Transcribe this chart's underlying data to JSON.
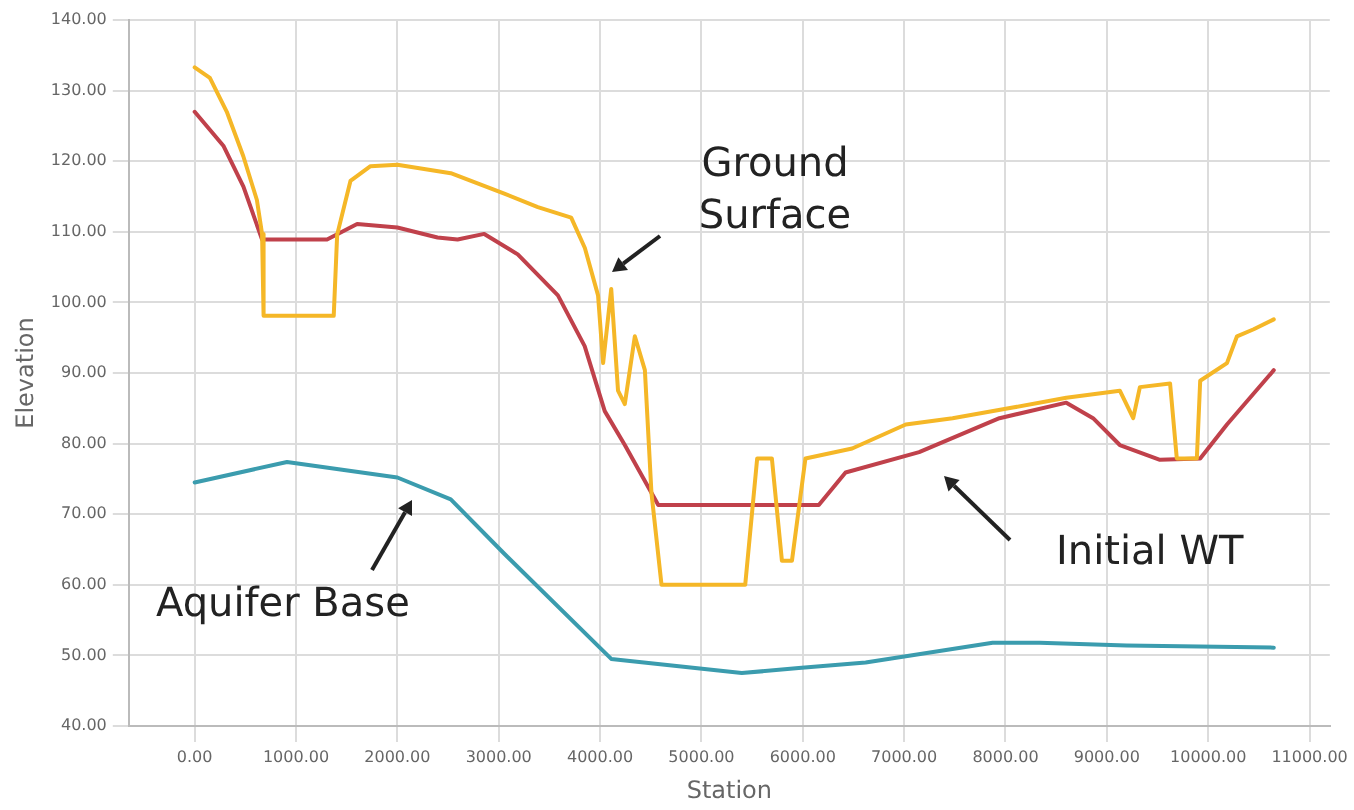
{
  "chart_data": {
    "type": "line",
    "xlabel": "Station",
    "ylabel": "Elevation",
    "xlim": [
      -650,
      11200
    ],
    "ylim": [
      40,
      140
    ],
    "xticks": [
      {
        "value": 0,
        "label": "0.00"
      },
      {
        "value": 1000,
        "label": "1000.00"
      },
      {
        "value": 2000,
        "label": "2000.00"
      },
      {
        "value": 3000,
        "label": "3000.00"
      },
      {
        "value": 4000,
        "label": "4000.00"
      },
      {
        "value": 5000,
        "label": "5000.00"
      },
      {
        "value": 6000,
        "label": "6000.00"
      },
      {
        "value": 7000,
        "label": "7000.00"
      },
      {
        "value": 8000,
        "label": "8000.00"
      },
      {
        "value": 9000,
        "label": "9000.00"
      },
      {
        "value": 10000,
        "label": "10000.00"
      },
      {
        "value": 11000,
        "label": "11000.00"
      }
    ],
    "yticks": [
      {
        "value": 40,
        "label": "40.00"
      },
      {
        "value": 50,
        "label": "50.00"
      },
      {
        "value": 60,
        "label": "60.00"
      },
      {
        "value": 70,
        "label": "70.00"
      },
      {
        "value": 80,
        "label": "80.00"
      },
      {
        "value": 90,
        "label": "90.00"
      },
      {
        "value": 100,
        "label": "100.00"
      },
      {
        "value": 110,
        "label": "110.00"
      },
      {
        "value": 120,
        "label": "120.00"
      },
      {
        "value": 130,
        "label": "130.00"
      },
      {
        "value": 140,
        "label": "140.00"
      }
    ],
    "grid": true,
    "legend": false,
    "marker": "none",
    "line_style": "solid",
    "series": [
      {
        "name": "Ground Surface",
        "color": "#f5b727",
        "x": [
          0,
          150,
          317,
          480,
          614,
          665,
          680,
          1372,
          1406,
          1537,
          1735,
          2000,
          2527,
          3055,
          3386,
          3715,
          3850,
          3980,
          4030,
          4110,
          4177,
          4244,
          4343,
          4442,
          4507,
          4606,
          5432,
          5550,
          5695,
          5794,
          5893,
          6026,
          6487,
          7016,
          7478,
          8072,
          8600,
          9128,
          9260,
          9326,
          9624,
          9690,
          9888,
          9921,
          10185,
          10284,
          10449,
          10647
        ],
        "values": [
          133.3,
          131.8,
          127,
          120.7,
          114.5,
          109.7,
          98.1,
          98.1,
          109.6,
          117.2,
          119.3,
          119.5,
          118.3,
          115.4,
          113.5,
          112,
          107.7,
          101,
          91.4,
          101.9,
          87.5,
          85.6,
          95.2,
          90.4,
          73,
          60,
          60,
          77.9,
          77.9,
          63.4,
          63.4,
          77.9,
          79.3,
          82.7,
          83.6,
          85.1,
          86.5,
          87.5,
          83.6,
          88,
          88.5,
          77.9,
          77.9,
          88.9,
          91.4,
          95.2,
          96.2,
          97.6
        ]
      },
      {
        "name": "Initial WT",
        "color": "#c0414b",
        "x": [
          0,
          283,
          481,
          665,
          1306,
          1603,
          2000,
          2396,
          2594,
          2857,
          3188,
          3584,
          3848,
          4046,
          4244,
          4574,
          6158,
          6422,
          7148,
          7940,
          8600,
          8864,
          9128,
          9524,
          9921,
          10185,
          10647
        ],
        "values": [
          127,
          122.2,
          116.4,
          108.9,
          108.9,
          111.1,
          110.6,
          109.2,
          108.9,
          109.7,
          106.8,
          101,
          93.8,
          84.6,
          79.8,
          71.3,
          71.3,
          75.9,
          78.8,
          83.6,
          85.8,
          83.6,
          79.8,
          77.7,
          77.9,
          82.7,
          90.4
        ]
      },
      {
        "name": "Aquifer Base",
        "color": "#3b9cae",
        "x": [
          0,
          911,
          2000,
          2527,
          3055,
          4110,
          5398,
          5960,
          6620,
          7873,
          8336,
          9194,
          10647
        ],
        "values": [
          74.5,
          77.4,
          75.2,
          72.1,
          64.4,
          49.5,
          47.5,
          48.2,
          49,
          51.8,
          51.8,
          51.4,
          51.1
        ]
      }
    ]
  }
}
